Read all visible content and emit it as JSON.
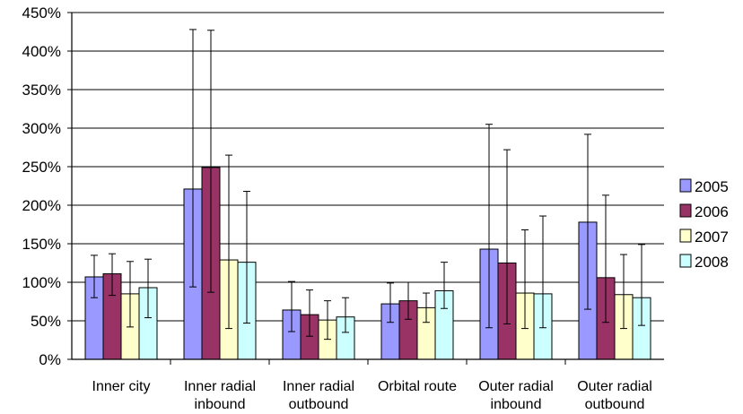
{
  "chart_data": {
    "type": "bar",
    "title": "",
    "xlabel": "",
    "ylabel": "",
    "ylim": [
      0,
      450
    ],
    "y_unit": "%",
    "yticks": [
      0,
      50,
      100,
      150,
      200,
      250,
      300,
      350,
      400,
      450
    ],
    "ytick_labels": [
      "0%",
      "50%",
      "100%",
      "150%",
      "200%",
      "250%",
      "300%",
      "350%",
      "400%",
      "450%"
    ],
    "grid": true,
    "legend_position": "right",
    "categories": [
      [
        "Inner city"
      ],
      [
        "Inner radial",
        "inbound"
      ],
      [
        "Inner radial",
        "outbound"
      ],
      [
        "Orbital route"
      ],
      [
        "Outer radial",
        "inbound"
      ],
      [
        "Outer radial",
        "outbound"
      ]
    ],
    "series": [
      {
        "name": "2005",
        "color": "#9999ff",
        "values": [
          107,
          221,
          64,
          72,
          143,
          178
        ],
        "err_low": [
          80,
          94,
          36,
          48,
          41,
          65
        ],
        "err_high": [
          135,
          428,
          101,
          99,
          305,
          292
        ]
      },
      {
        "name": "2006",
        "color": "#993366",
        "values": [
          111,
          249,
          58,
          76,
          125,
          106
        ],
        "err_low": [
          83,
          87,
          30,
          52,
          46,
          48
        ],
        "err_high": [
          137,
          427,
          90,
          100,
          272,
          213
        ]
      },
      {
        "name": "2007",
        "color": "#ffffcc",
        "values": [
          85,
          129,
          51,
          67,
          86,
          84
        ],
        "err_low": [
          42,
          40,
          26,
          48,
          40,
          40
        ],
        "err_high": [
          127,
          265,
          76,
          86,
          168,
          136
        ]
      },
      {
        "name": "2008",
        "color": "#ccffff",
        "values": [
          93,
          126,
          55,
          89,
          85,
          80
        ],
        "err_low": [
          54,
          47,
          35,
          66,
          41,
          44
        ],
        "err_high": [
          130,
          218,
          80,
          126,
          186,
          149
        ]
      }
    ]
  }
}
